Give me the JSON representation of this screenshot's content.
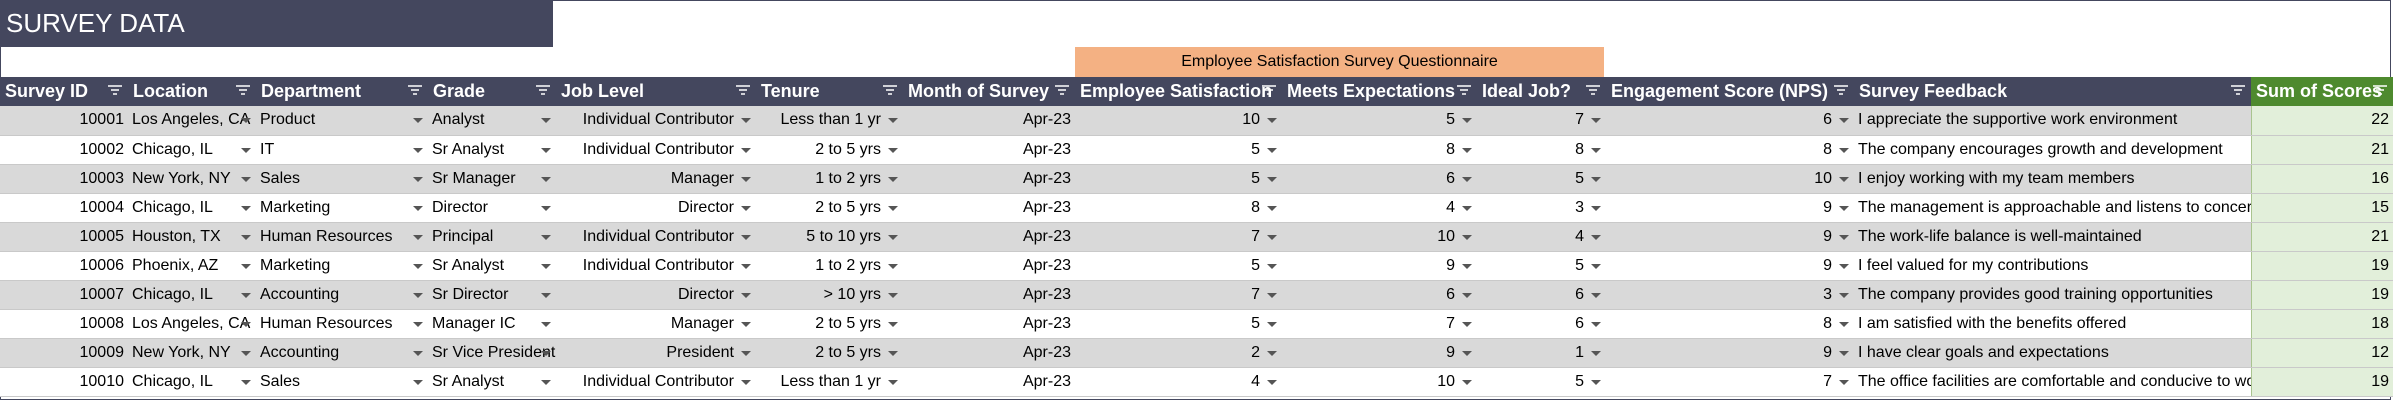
{
  "title": "SURVEY DATA",
  "questionnaire_label": "Employee Satisfaction Survey Questionnaire",
  "columns": {
    "survey_id": "Survey ID",
    "location": "Location",
    "department": "Department",
    "grade": "Grade",
    "job_level": "Job Level",
    "tenure": "Tenure",
    "month": "Month of Survey",
    "satisfaction": "Employee Satisfaction",
    "expectations": "Meets Expectations",
    "ideal_job": "Ideal Job?",
    "nps": "Engagement Score (NPS)",
    "feedback": "Survey Feedback",
    "sum": "Sum of Scores"
  },
  "rows": [
    {
      "id": "10001",
      "location": "Los Angeles, CA",
      "department": "Product",
      "grade": "Analyst",
      "job_level": "Individual Contributor",
      "tenure": "Less than 1 yr",
      "month": "Apr-23",
      "satisfaction": "10",
      "expectations": "5",
      "ideal": "7",
      "nps": "6",
      "feedback": "I appreciate the supportive work environment",
      "sum": "22"
    },
    {
      "id": "10002",
      "location": "Chicago, IL",
      "department": "IT",
      "grade": "Sr Analyst",
      "job_level": "Individual Contributor",
      "tenure": "2 to 5 yrs",
      "month": "Apr-23",
      "satisfaction": "5",
      "expectations": "8",
      "ideal": "8",
      "nps": "8",
      "feedback": "The company encourages growth and development",
      "sum": "21"
    },
    {
      "id": "10003",
      "location": "New York, NY",
      "department": "Sales",
      "grade": "Sr Manager",
      "job_level": "Manager",
      "tenure": "1 to 2 yrs",
      "month": "Apr-23",
      "satisfaction": "5",
      "expectations": "6",
      "ideal": "5",
      "nps": "10",
      "feedback": "I enjoy working with my team members",
      "sum": "16"
    },
    {
      "id": "10004",
      "location": "Chicago, IL",
      "department": "Marketing",
      "grade": "Director",
      "job_level": "Director",
      "tenure": "2 to 5 yrs",
      "month": "Apr-23",
      "satisfaction": "8",
      "expectations": "4",
      "ideal": "3",
      "nps": "9",
      "feedback": "The management is approachable and listens to concerns",
      "sum": "15"
    },
    {
      "id": "10005",
      "location": "Houston, TX",
      "department": "Human Resources",
      "grade": "Principal",
      "job_level": "Individual Contributor",
      "tenure": "5 to 10 yrs",
      "month": "Apr-23",
      "satisfaction": "7",
      "expectations": "10",
      "ideal": "4",
      "nps": "9",
      "feedback": "The work-life balance is well-maintained",
      "sum": "21"
    },
    {
      "id": "10006",
      "location": "Phoenix, AZ",
      "department": "Marketing",
      "grade": "Sr Analyst",
      "job_level": "Individual Contributor",
      "tenure": "1 to 2 yrs",
      "month": "Apr-23",
      "satisfaction": "5",
      "expectations": "9",
      "ideal": "5",
      "nps": "9",
      "feedback": "I feel valued for my contributions",
      "sum": "19"
    },
    {
      "id": "10007",
      "location": "Chicago, IL",
      "department": "Accounting",
      "grade": "Sr Director",
      "job_level": "Director",
      "tenure": "> 10 yrs",
      "month": "Apr-23",
      "satisfaction": "7",
      "expectations": "6",
      "ideal": "6",
      "nps": "3",
      "feedback": "The company provides good training opportunities",
      "sum": "19"
    },
    {
      "id": "10008",
      "location": "Los Angeles, CA",
      "department": "Human Resources",
      "grade": "Manager IC",
      "job_level": "Manager",
      "tenure": "2 to 5 yrs",
      "month": "Apr-23",
      "satisfaction": "5",
      "expectations": "7",
      "ideal": "6",
      "nps": "8",
      "feedback": "I am satisfied with the benefits offered",
      "sum": "18"
    },
    {
      "id": "10009",
      "location": "New York, NY",
      "department": "Accounting",
      "grade": "Sr Vice President",
      "job_level": "President",
      "tenure": "2 to 5 yrs",
      "month": "Apr-23",
      "satisfaction": "2",
      "expectations": "9",
      "ideal": "1",
      "nps": "9",
      "feedback": "I have clear goals and expectations",
      "sum": "12"
    },
    {
      "id": "10010",
      "location": "Chicago, IL",
      "department": "Sales",
      "grade": "Sr Analyst",
      "job_level": "Individual Contributor",
      "tenure": "Less than 1 yr",
      "month": "Apr-23",
      "satisfaction": "4",
      "expectations": "10",
      "ideal": "5",
      "nps": "7",
      "feedback": "The office facilities are comfortable and conducive to work",
      "sum": "19"
    }
  ],
  "colors": {
    "header": "#44475e",
    "questionnaire": "#f4b183",
    "sum_header": "#4e8a2e",
    "sum_cell": "#e2efda",
    "row_alt": "#d9d9d9"
  }
}
